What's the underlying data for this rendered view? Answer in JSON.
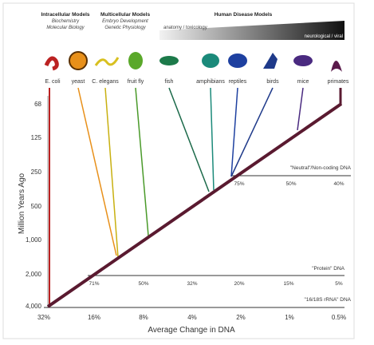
{
  "header": {
    "intracellular": {
      "title": "Intracellular Models",
      "lines": [
        "Biochemistry",
        "Molecular Biology"
      ]
    },
    "multicellular": {
      "title": "Multicellular Models",
      "lines": [
        "Embryo Development",
        "Genetic Physiology"
      ]
    },
    "human": {
      "title": "Human Disease Models",
      "left": "anatomy / toxicology",
      "right": "neurological / viral"
    }
  },
  "organisms": [
    "E. coli",
    "yeast",
    "C. elegans",
    "fruit fly",
    "fish",
    "amphibians",
    "reptiles",
    "birds",
    "mice",
    "primates"
  ],
  "y_axis": {
    "title": "Million Years Ago",
    "ticks": [
      "68",
      "125",
      "250",
      "500",
      "1,000",
      "2,000",
      "4,000"
    ]
  },
  "x_axis": {
    "title": "Average Change in DNA",
    "ticks": [
      "32%",
      "16%",
      "8%",
      "4%",
      "2%",
      "1%",
      "0.5%"
    ]
  },
  "dna": {
    "neutral": {
      "label": "\"Neutral\"/Non-coding DNA",
      "ticks": [
        "75%",
        "50%",
        "40%"
      ]
    },
    "protein": {
      "label": "\"Protein\" DNA",
      "ticks": [
        "71%",
        "50%",
        "32%",
        "20%",
        "15%",
        "5%"
      ]
    },
    "rrna": {
      "label": "\"16/18S rRNA\" DNA"
    }
  }
}
